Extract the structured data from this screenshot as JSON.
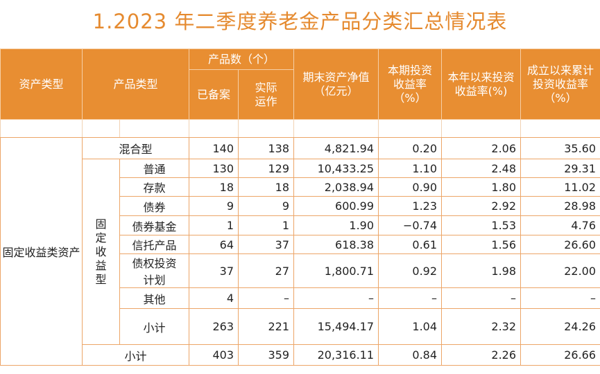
{
  "title": "1.2023 年二季度养老金产品分类汇总情况表",
  "headers": {
    "asset_type": "资产类型",
    "product_type": "产品类型",
    "product_count": "产品数（个）",
    "filed": "已备案",
    "operating": "实际运作",
    "nav": "期末资产净值（亿元）",
    "period_return": "本期投资收益率（%）",
    "ytd_return": "本年以来投资收益率(%)",
    "cumulative_return": "成立以来累计投资收益率（%）"
  },
  "asset_type": "固定收益类资产",
  "fixed_income_group": "固定收益型",
  "rows": [
    {
      "label": "混合型",
      "filed": "140",
      "operating": "138",
      "nav": "4,821.94",
      "period": "0.20",
      "ytd": "2.06",
      "cum": "35.60"
    },
    {
      "label": "普通",
      "filed": "130",
      "operating": "129",
      "nav": "10,433.25",
      "period": "1.10",
      "ytd": "2.48",
      "cum": "29.31"
    },
    {
      "label": "存款",
      "filed": "18",
      "operating": "18",
      "nav": "2,038.94",
      "period": "0.90",
      "ytd": "1.80",
      "cum": "11.02"
    },
    {
      "label": "债券",
      "filed": "9",
      "operating": "9",
      "nav": "600.99",
      "period": "1.23",
      "ytd": "2.92",
      "cum": "28.98"
    },
    {
      "label": "债券基金",
      "filed": "1",
      "operating": "1",
      "nav": "1.90",
      "period": "−0.74",
      "ytd": "1.53",
      "cum": "4.76"
    },
    {
      "label": "信托产品",
      "filed": "64",
      "operating": "37",
      "nav": "618.38",
      "period": "0.61",
      "ytd": "1.56",
      "cum": "26.60"
    },
    {
      "label": "债权投资计划",
      "filed": "37",
      "operating": "27",
      "nav": "1,800.71",
      "period": "0.92",
      "ytd": "1.98",
      "cum": "22.00"
    },
    {
      "label": "其他",
      "filed": "4",
      "operating": "–",
      "nav": "–",
      "period": "–",
      "ytd": "–",
      "cum": "–"
    },
    {
      "label": "小计",
      "filed": "263",
      "operating": "221",
      "nav": "15,494.17",
      "period": "1.04",
      "ytd": "2.32",
      "cum": "24.26"
    },
    {
      "label": "小计",
      "filed": "403",
      "operating": "359",
      "nav": "20,316.11",
      "period": "0.84",
      "ytd": "2.26",
      "cum": "26.66"
    }
  ]
}
